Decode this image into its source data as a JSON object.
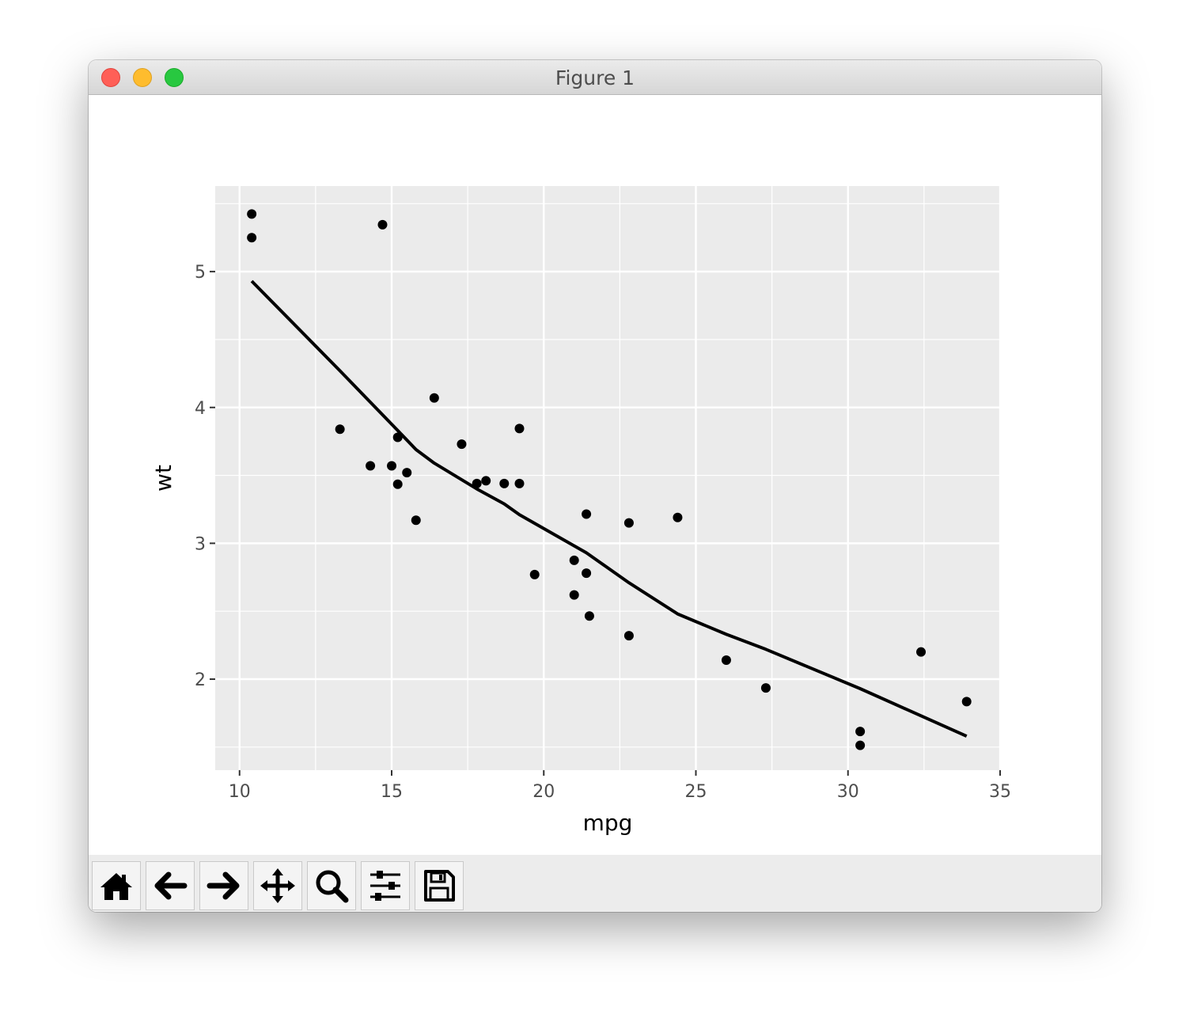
{
  "window": {
    "title": "Figure 1",
    "traffic_colors": {
      "close": "#ff5f57",
      "minimize": "#febc2e",
      "zoom": "#28c840"
    }
  },
  "toolbar": {
    "buttons": [
      {
        "name": "home-button",
        "icon": "home-icon"
      },
      {
        "name": "back-button",
        "icon": "arrow-left-icon"
      },
      {
        "name": "forward-button",
        "icon": "arrow-right-icon"
      },
      {
        "name": "pan-button",
        "icon": "move-arrows-icon"
      },
      {
        "name": "zoom-button",
        "icon": "magnifier-icon"
      },
      {
        "name": "configure-subplots-button",
        "icon": "sliders-icon"
      },
      {
        "name": "save-button",
        "icon": "floppy-disk-icon"
      }
    ]
  },
  "chart_data": {
    "type": "scatter",
    "title": "",
    "xlabel": "mpg",
    "ylabel": "wt",
    "xlim": [
      9.2,
      35.0
    ],
    "ylim": [
      1.33,
      5.63
    ],
    "xticks": [
      10,
      15,
      20,
      25,
      30,
      35
    ],
    "yticks": [
      2,
      3,
      4,
      5
    ],
    "xtick_labels": [
      "10",
      "15",
      "20",
      "25",
      "30",
      "35"
    ],
    "ytick_labels": [
      "2",
      "3",
      "4",
      "5"
    ],
    "grid": true,
    "panel_background": "#ebebeb",
    "grid_color": "#ffffff",
    "points": {
      "x": [
        21.0,
        21.0,
        22.8,
        21.4,
        18.7,
        18.1,
        14.3,
        24.4,
        22.8,
        19.2,
        17.8,
        16.4,
        17.3,
        15.2,
        10.4,
        10.4,
        14.7,
        32.4,
        30.4,
        33.9,
        21.5,
        15.5,
        15.2,
        13.3,
        19.2,
        27.3,
        26.0,
        30.4,
        15.8,
        19.7,
        15.0,
        21.4
      ],
      "y": [
        2.62,
        2.875,
        2.32,
        3.215,
        3.44,
        3.46,
        3.57,
        3.19,
        3.15,
        3.44,
        3.44,
        4.07,
        3.73,
        3.78,
        5.25,
        5.424,
        5.345,
        2.2,
        1.615,
        1.835,
        2.465,
        3.52,
        3.435,
        3.84,
        3.845,
        1.935,
        2.14,
        1.513,
        3.17,
        2.77,
        3.57,
        2.78
      ],
      "color": "#000000"
    },
    "smooth_line": {
      "x": [
        10.4,
        13.3,
        15.2,
        15.8,
        16.4,
        17.8,
        18.7,
        19.2,
        21.4,
        22.8,
        24.4,
        26.0,
        27.3,
        30.4,
        33.9
      ],
      "y": [
        4.93,
        4.27,
        3.83,
        3.69,
        3.59,
        3.4,
        3.29,
        3.21,
        2.93,
        2.71,
        2.48,
        2.33,
        2.22,
        1.93,
        1.58
      ],
      "color": "#000000"
    }
  }
}
